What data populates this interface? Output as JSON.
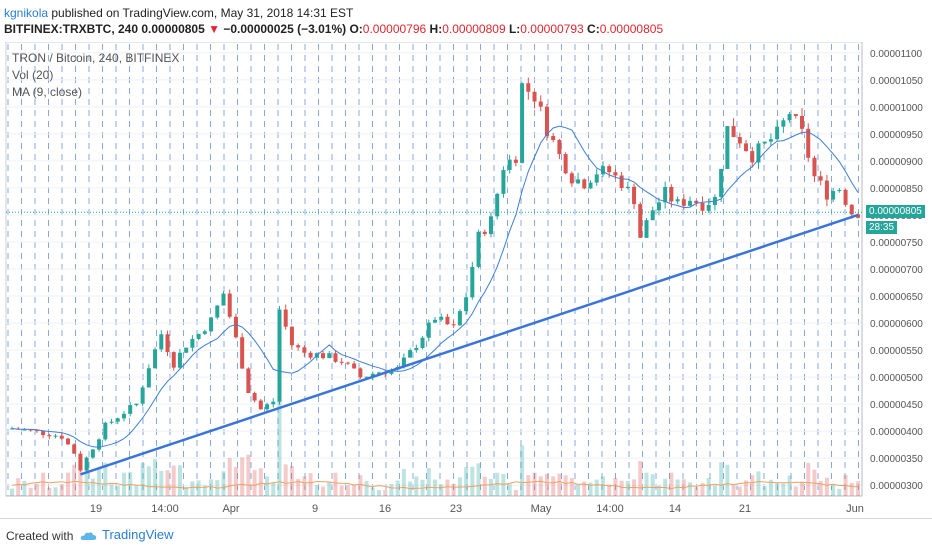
{
  "header": {
    "author": "kgnikola",
    "published": " published on TradingView.com, May 31, 2018 14:31 EST",
    "symbol": "BITFINEX:TRXBTC, 240",
    "last_price": "0.00000805",
    "change_arrow": "▼",
    "change": "−0.00000025 (−3.01%)",
    "o_label": "O:",
    "o_value": "0.00000796",
    "h_label": "H:",
    "h_value": "0.00000809",
    "l_label": "L:",
    "l_value": "0.00000793",
    "c_label": "C:",
    "c_value": "0.00000805"
  },
  "legend": {
    "title": "TRON / Bitcoin, 240, BITFINEX",
    "vol": "Vol (20)",
    "ma": "MA (9, close)"
  },
  "price_tag": {
    "value": "0.00000805",
    "countdown": "28:35"
  },
  "footer": {
    "created": "Created with",
    "brand": "TradingView"
  },
  "colors": {
    "up": "#26a69a",
    "down": "#d9534f",
    "ma": "#3d7fd6",
    "trendline": "#3a74d9",
    "grid": "#5b8ed8",
    "vol_ma": "#f0a05a"
  },
  "chart_data": {
    "type": "candlestick",
    "x_tick_labels": [
      "19",
      "14:00",
      "Apr",
      "9",
      "16",
      "23",
      "May",
      "14:00",
      "14",
      "21",
      "Jun"
    ],
    "y_tick_labels": [
      "0.00000300",
      "0.00000350",
      "0.00000400",
      "0.00000450",
      "0.00000500",
      "0.00000550",
      "0.00000600",
      "0.00000650",
      "0.00000700",
      "0.00000750",
      "0.00000800",
      "0.00000850",
      "0.00000900",
      "0.00000950",
      "0.00001000",
      "0.00001050",
      "0.00001100"
    ],
    "ylim": [
      2.8e-06,
      1.12e-05
    ],
    "price_path": [
      [
        0,
        4.05e-06
      ],
      [
        2,
        4.02e-06
      ],
      [
        4,
        3.98e-06
      ],
      [
        6,
        3.95e-06
      ],
      [
        8,
        3.9e-06
      ],
      [
        10,
        3.6e-06
      ],
      [
        11,
        3.3e-06
      ],
      [
        13,
        3.7e-06
      ],
      [
        15,
        4.1e-06
      ],
      [
        18,
        4.35e-06
      ],
      [
        20,
        4.5e-06
      ],
      [
        22,
        5.2e-06
      ],
      [
        24,
        5.8e-06
      ],
      [
        26,
        5.25e-06
      ],
      [
        28,
        5.6e-06
      ],
      [
        30,
        5.8e-06
      ],
      [
        32,
        6.05e-06
      ],
      [
        34,
        6.55e-06
      ],
      [
        36,
        5.7e-06
      ],
      [
        38,
        4.75e-06
      ],
      [
        40,
        4.4e-06
      ],
      [
        42,
        4.55e-06
      ],
      [
        43,
        6.25e-06
      ],
      [
        45,
        5.6e-06
      ],
      [
        47,
        5.45e-06
      ],
      [
        50,
        5.4e-06
      ],
      [
        53,
        5.3e-06
      ],
      [
        56,
        5e-06
      ],
      [
        59,
        5.1e-06
      ],
      [
        62,
        5.15e-06
      ],
      [
        65,
        5.6e-06
      ],
      [
        68,
        6.1e-06
      ],
      [
        71,
        5.9e-06
      ],
      [
        73,
        6.5e-06
      ],
      [
        75,
        7.6e-06
      ],
      [
        77,
        7.9e-06
      ],
      [
        79,
        8.9e-06
      ],
      [
        81,
        9.1e-06
      ],
      [
        82,
        1.04e-05
      ],
      [
        84,
        1.02e-05
      ],
      [
        86,
        9.6e-06
      ],
      [
        88,
        9.1e-06
      ],
      [
        90,
        8.7e-06
      ],
      [
        92,
        8.6e-06
      ],
      [
        94,
        8.8e-06
      ],
      [
        96,
        8.8e-06
      ],
      [
        98,
        8.6e-06
      ],
      [
        100,
        8.3e-06
      ],
      [
        101,
        7.6e-06
      ],
      [
        103,
        8.1e-06
      ],
      [
        105,
        8.4e-06
      ],
      [
        107,
        8.2e-06
      ],
      [
        109,
        8.3e-06
      ],
      [
        111,
        8.2e-06
      ],
      [
        113,
        8.3e-06
      ],
      [
        115,
        9.6e-06
      ],
      [
        117,
        9.4e-06
      ],
      [
        119,
        9.1e-06
      ],
      [
        121,
        9.3e-06
      ],
      [
        123,
        9.5e-06
      ],
      [
        125,
        9.9e-06
      ],
      [
        127,
        9.5e-06
      ],
      [
        129,
        8.7e-06
      ],
      [
        131,
        8.4e-06
      ],
      [
        133,
        8.5e-06
      ],
      [
        135,
        8.05e-06
      ]
    ],
    "trendline": {
      "from": [
        11,
        3.2e-06
      ],
      "to": [
        136,
        8e-06
      ]
    }
  }
}
